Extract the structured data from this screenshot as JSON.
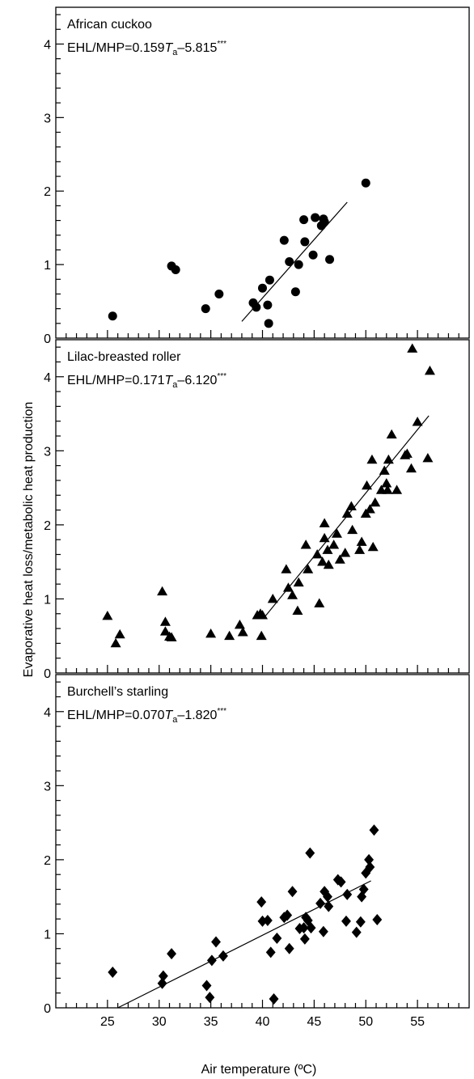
{
  "chart_data": {
    "type": "scatter",
    "xlabel": "Air temperature (ºC)",
    "ylabel": "Evaporative heat loss/metabolic heat production",
    "xlim": [
      20,
      60
    ],
    "x_ticks": [
      "25",
      "30",
      "35",
      "40",
      "45",
      "50",
      "55"
    ],
    "ylim": [
      0,
      4.5
    ],
    "y_ticks": [
      "0",
      "1",
      "2",
      "3",
      "4"
    ],
    "panels": [
      {
        "name": "African cuckoo",
        "equation": {
          "prefix": "EHL/MHP=0.159",
          "var": "T",
          "sub": "a",
          "suffix": "–5.815",
          "sig": "***"
        },
        "marker": "circle",
        "fit": {
          "slope": 0.159,
          "intercept": -5.815,
          "x_range": [
            38,
            48.2
          ]
        },
        "points": [
          [
            25.5,
            0.3
          ],
          [
            31.2,
            0.98
          ],
          [
            31.6,
            0.93
          ],
          [
            34.5,
            0.4
          ],
          [
            35.8,
            0.6
          ],
          [
            39.1,
            0.48
          ],
          [
            39.4,
            0.42
          ],
          [
            40,
            0.68
          ],
          [
            40.5,
            0.45
          ],
          [
            40.6,
            0.2
          ],
          [
            40.7,
            0.79
          ],
          [
            42.1,
            1.33
          ],
          [
            42.6,
            1.04
          ],
          [
            43.2,
            0.63
          ],
          [
            43.5,
            1
          ],
          [
            44,
            1.61
          ],
          [
            44.1,
            1.31
          ],
          [
            44.9,
            1.13
          ],
          [
            45.1,
            1.64
          ],
          [
            45.7,
            1.53
          ],
          [
            45.9,
            1.62
          ],
          [
            46,
            1.58
          ],
          [
            46.5,
            1.07
          ],
          [
            50,
            2.11
          ]
        ]
      },
      {
        "name": "Lilac-breasted roller",
        "equation": {
          "prefix": "EHL/MHP=0.171",
          "var": "T",
          "sub": "a",
          "suffix": "–6.120",
          "sig": "***"
        },
        "marker": "triangle",
        "fit": {
          "slope": 0.171,
          "intercept": -6.12,
          "x_range": [
            40.2,
            56.1
          ]
        },
        "points": [
          [
            25,
            0.77
          ],
          [
            25.8,
            0.4
          ],
          [
            26.2,
            0.52
          ],
          [
            30.3,
            1.1
          ],
          [
            30.6,
            0.56
          ],
          [
            30.6,
            0.69
          ],
          [
            31,
            0.49
          ],
          [
            31.2,
            0.48
          ],
          [
            35,
            0.53
          ],
          [
            36.8,
            0.5
          ],
          [
            37.8,
            0.65
          ],
          [
            38.1,
            0.55
          ],
          [
            39.5,
            0.78
          ],
          [
            39.8,
            0.8
          ],
          [
            39.9,
            0.5
          ],
          [
            40,
            0.78
          ],
          [
            41,
            1
          ],
          [
            42.3,
            1.4
          ],
          [
            42.5,
            1.15
          ],
          [
            42.9,
            1.05
          ],
          [
            43.4,
            0.84
          ],
          [
            43.5,
            1.22
          ],
          [
            44.2,
            1.73
          ],
          [
            44.4,
            1.4
          ],
          [
            45.3,
            1.6
          ],
          [
            45.5,
            0.94
          ],
          [
            45.8,
            1.5
          ],
          [
            46,
            1.82
          ],
          [
            46,
            2.02
          ],
          [
            46.3,
            1.66
          ],
          [
            46.4,
            1.46
          ],
          [
            46.9,
            1.73
          ],
          [
            47.2,
            1.88
          ],
          [
            47.5,
            1.53
          ],
          [
            48,
            1.62
          ],
          [
            48.2,
            2.15
          ],
          [
            48.6,
            2.25
          ],
          [
            48.7,
            1.93
          ],
          [
            49.4,
            1.66
          ],
          [
            49.6,
            1.77
          ],
          [
            50,
            2.15
          ],
          [
            50.1,
            2.53
          ],
          [
            50.4,
            2.21
          ],
          [
            50.6,
            2.88
          ],
          [
            50.7,
            1.7
          ],
          [
            50.9,
            2.3
          ],
          [
            51.5,
            2.47
          ],
          [
            51.8,
            2.73
          ],
          [
            52,
            2.56
          ],
          [
            52.1,
            2.47
          ],
          [
            52.2,
            2.88
          ],
          [
            52.5,
            3.22
          ],
          [
            53,
            2.47
          ],
          [
            53.8,
            2.94
          ],
          [
            54,
            2.96
          ],
          [
            54.4,
            2.76
          ],
          [
            54.5,
            4.38
          ],
          [
            55,
            3.39
          ],
          [
            56,
            2.9
          ],
          [
            56.2,
            4.08
          ]
        ]
      },
      {
        "name": "Burchell’s starling",
        "equation": {
          "prefix": "EHL/MHP=0.070",
          "var": "T",
          "sub": "a",
          "suffix": "–1.820",
          "sig": "***"
        },
        "marker": "diamond",
        "fit": {
          "slope": 0.07,
          "intercept": -1.82,
          "x_range": [
            26,
            50.5
          ]
        },
        "points": [
          [
            25.5,
            0.48
          ],
          [
            30.3,
            0.33
          ],
          [
            30.4,
            0.43
          ],
          [
            31.2,
            0.73
          ],
          [
            34.6,
            0.3
          ],
          [
            34.9,
            0.14
          ],
          [
            35.1,
            0.64
          ],
          [
            35.5,
            0.89
          ],
          [
            36.2,
            0.7
          ],
          [
            39.9,
            1.43
          ],
          [
            40,
            1.17
          ],
          [
            40.5,
            1.18
          ],
          [
            40.8,
            0.75
          ],
          [
            41.1,
            0.12
          ],
          [
            41.4,
            0.94
          ],
          [
            42.1,
            1.22
          ],
          [
            42.4,
            1.25
          ],
          [
            42.6,
            0.8
          ],
          [
            42.9,
            1.57
          ],
          [
            43.6,
            1.07
          ],
          [
            44,
            1.08
          ],
          [
            44.1,
            0.93
          ],
          [
            44.2,
            1.22
          ],
          [
            44.4,
            1.18
          ],
          [
            44.6,
            2.09
          ],
          [
            44.7,
            1.08
          ],
          [
            45.6,
            1.41
          ],
          [
            45.9,
            1.03
          ],
          [
            46,
            1.57
          ],
          [
            46.3,
            1.5
          ],
          [
            46.4,
            1.37
          ],
          [
            47.3,
            1.73
          ],
          [
            47.6,
            1.7
          ],
          [
            48.1,
            1.17
          ],
          [
            48.2,
            1.53
          ],
          [
            49.1,
            1.02
          ],
          [
            49.5,
            1.16
          ],
          [
            49.6,
            1.5
          ],
          [
            49.8,
            1.6
          ],
          [
            50,
            1.82
          ],
          [
            50.3,
            2
          ],
          [
            50.4,
            1.9
          ],
          [
            50.8,
            2.4
          ],
          [
            51.1,
            1.19
          ]
        ]
      }
    ]
  }
}
